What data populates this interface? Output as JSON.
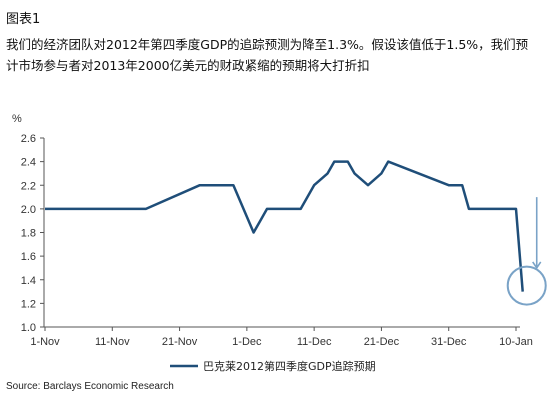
{
  "figure": {
    "label": "图表1",
    "subtitle": "我们的经济团队对2012年第四季度GDP的追踪预测为降至1.3%。假设该值低于1.5%，我们预计市场参与者对2013年2000亿美元的财政紧缩的预期将大打折扣"
  },
  "source": "Source: Barclays Economic Research",
  "colors": {
    "series": "#1f4e79",
    "highlight": "#7aa3c7",
    "axis": "#555555",
    "grid": "#cccccc"
  },
  "chart_data": {
    "type": "line",
    "ylabel": "%",
    "ylim": [
      1.0,
      2.6
    ],
    "yticks": [
      1.0,
      1.2,
      1.4,
      1.6,
      1.8,
      2.0,
      2.2,
      2.4,
      2.6
    ],
    "ytick_labels": [
      "1.0",
      "1.2",
      "1.4",
      "1.6",
      "1.8",
      "2.0",
      "2.2",
      "2.4",
      "2.6"
    ],
    "x_tick_labels": [
      "1-Nov",
      "11-Nov",
      "21-Nov",
      "1-Dec",
      "11-Dec",
      "21-Dec",
      "31-Dec",
      "10-Jan"
    ],
    "x_tick_dates": [
      "2012-11-01",
      "2012-11-11",
      "2012-11-21",
      "2012-12-01",
      "2012-12-11",
      "2012-12-21",
      "2012-12-31",
      "2013-01-10"
    ],
    "grid": false,
    "legend_position": "bottom",
    "series": [
      {
        "name": "巴克莱2012第四季度GDP追踪预期",
        "x": [
          "2012-11-01",
          "2012-11-11",
          "2012-11-16",
          "2012-11-24",
          "2012-11-26",
          "2012-11-29",
          "2012-12-02",
          "2012-12-03",
          "2012-12-04",
          "2012-12-09",
          "2012-12-11",
          "2012-12-13",
          "2012-12-14",
          "2012-12-16",
          "2012-12-17",
          "2012-12-19",
          "2012-12-21",
          "2012-12-22",
          "2012-12-31",
          "2013-01-02",
          "2013-01-03",
          "2013-01-05",
          "2013-01-06",
          "2013-01-10",
          "2013-01-11"
        ],
        "values": [
          2.0,
          2.0,
          2.0,
          2.2,
          2.2,
          2.2,
          1.8,
          1.9,
          2.0,
          2.0,
          2.2,
          2.3,
          2.4,
          2.4,
          2.3,
          2.2,
          2.3,
          2.4,
          2.2,
          2.2,
          2.0,
          2.0,
          2.0,
          2.0,
          1.3
        ]
      }
    ]
  }
}
